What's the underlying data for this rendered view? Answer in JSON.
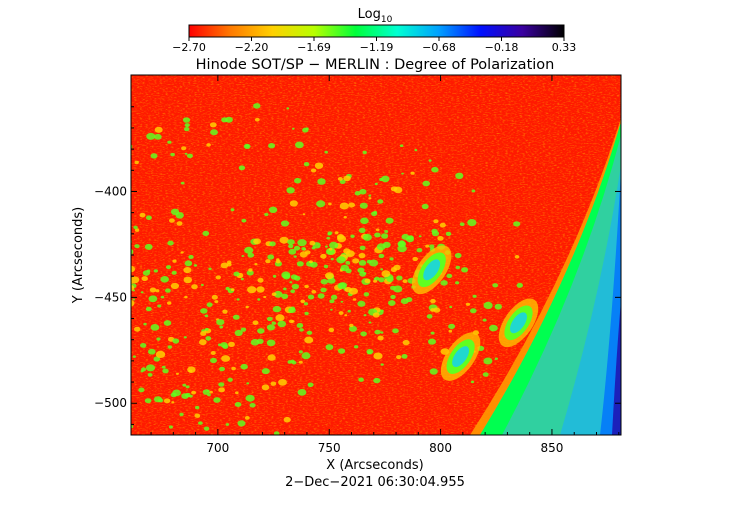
{
  "colorbar": {
    "label_main": "Log",
    "label_sub": "10",
    "ticks": [
      "-2.70",
      "-2.20",
      "-1.69",
      "-1.19",
      "-0.68",
      "-0.18",
      "0.33"
    ],
    "colors": [
      "#ff0000",
      "#ff7a00",
      "#ffd000",
      "#b8ff00",
      "#00ff3a",
      "#00ffd2",
      "#00a0ff",
      "#0010ff",
      "#3a00a0",
      "#000000"
    ]
  },
  "chart_data": {
    "type": "heatmap",
    "title": "Hinode SOT/SP − MERLIN : Degree of Polarization",
    "xlabel": "X (Arcseconds)",
    "ylabel": "Y (Arcseconds)",
    "xlim": [
      661,
      881
    ],
    "ylim": [
      -515,
      -345
    ],
    "x_ticks": [
      700,
      750,
      800,
      850
    ],
    "x_tick_labels": [
      "700",
      "750",
      "800",
      "850"
    ],
    "y_ticks": [
      -400,
      -450,
      -500
    ],
    "y_tick_labels": [
      "−400",
      "−450",
      "−500"
    ],
    "value_range": [
      -2.7,
      0.33
    ],
    "colors": {
      "background": "#ff1a00",
      "limb_bright": "#ffb000",
      "limb_green": "#20e070",
      "off_limb": "#30d0b0",
      "off_limb_edge": "#1090ff",
      "plage": "#60ff20",
      "sunspot_core": "#20d8d0"
    },
    "sunspots": [
      {
        "x": 796,
        "y": -437
      },
      {
        "x": 809,
        "y": -478
      },
      {
        "x": 835,
        "y": -462
      }
    ]
  },
  "footer": {
    "timestamp": "2−Dec−2021 06:30:04.955"
  }
}
